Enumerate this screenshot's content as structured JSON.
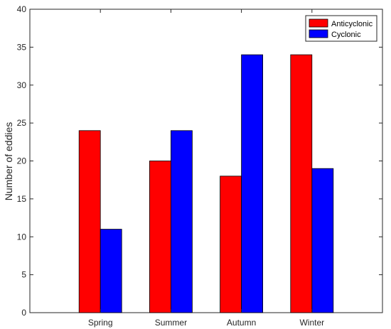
{
  "chart_data": {
    "type": "bar",
    "title": "",
    "xlabel": "",
    "ylabel": "Number of eddies",
    "categories": [
      "Spring",
      "Summer",
      "Autumn",
      "Winter"
    ],
    "series": [
      {
        "name": "Anticyclonic",
        "values": [
          24,
          20,
          18,
          34
        ],
        "color": "#ff0000"
      },
      {
        "name": "Cyclonic",
        "values": [
          11,
          24,
          34,
          19
        ],
        "color": "#0000ff"
      }
    ],
    "ylim": [
      0,
      40
    ],
    "yticks": [
      0,
      5,
      10,
      15,
      20,
      25,
      30,
      35,
      40
    ],
    "grid": false,
    "legend_position": "top-right"
  }
}
